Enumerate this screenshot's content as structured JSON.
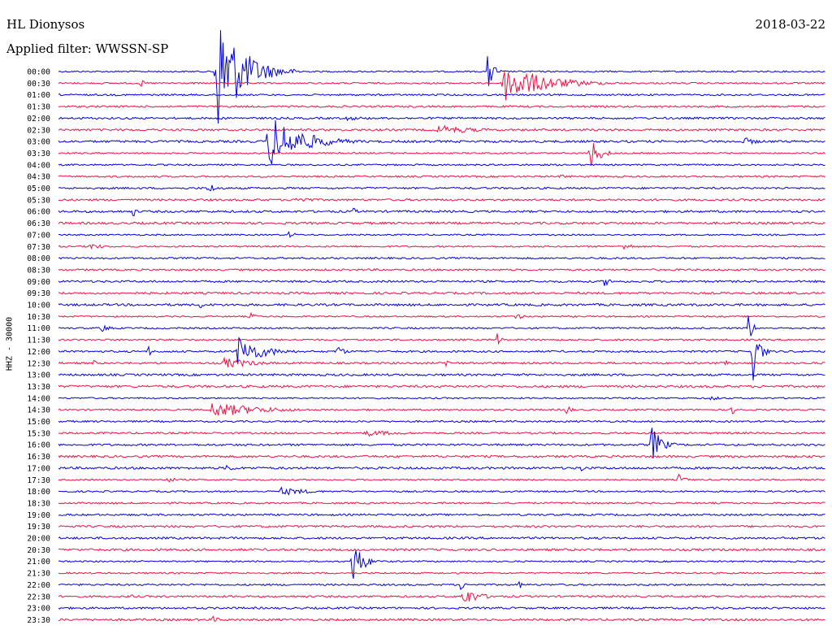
{
  "header": {
    "station": "HL Dionysos",
    "date": "2018-03-22",
    "filter": "Applied filter: WWSSN-SP",
    "channel": "HHZ - 30000"
  },
  "chart_data": {
    "type": "line",
    "colors": [
      "#0000dd",
      "#ee1144"
    ],
    "y_tick_labels": [
      "00:00",
      "00:30",
      "01:00",
      "01:30",
      "02:00",
      "02:30",
      "03:00",
      "03:30",
      "04:00",
      "04:30",
      "05:00",
      "05:30",
      "06:00",
      "06:30",
      "07:00",
      "07:30",
      "08:00",
      "08:30",
      "09:00",
      "09:30",
      "10:00",
      "10:30",
      "11:00",
      "11:30",
      "12:00",
      "12:30",
      "13:00",
      "13:30",
      "14:00",
      "14:30",
      "15:00",
      "15:30",
      "16:00",
      "16:30",
      "17:00",
      "17:30",
      "18:00",
      "18:30",
      "19:00",
      "19:30",
      "20:00",
      "20:30",
      "21:00",
      "21:30",
      "22:00",
      "22:30",
      "23:00",
      "23:30"
    ],
    "events": [
      {
        "row": 0,
        "x": 0.205,
        "amp": 85,
        "dur": 0.03
      },
      {
        "row": 0,
        "x": 0.56,
        "amp": 30,
        "dur": 0.006
      },
      {
        "row": 1,
        "x": 0.58,
        "amp": 25,
        "dur": 0.05
      },
      {
        "row": 1,
        "x": 0.107,
        "amp": 6,
        "dur": 0.004
      },
      {
        "row": 4,
        "x": 0.375,
        "amp": 3,
        "dur": 0.035
      },
      {
        "row": 5,
        "x": 0.495,
        "amp": 6,
        "dur": 0.05
      },
      {
        "row": 6,
        "x": 0.273,
        "amp": 35,
        "dur": 0.04
      },
      {
        "row": 6,
        "x": 0.894,
        "amp": 5,
        "dur": 0.02
      },
      {
        "row": 7,
        "x": 0.692,
        "amp": 22,
        "dur": 0.012
      },
      {
        "row": 9,
        "x": 0.655,
        "amp": 4,
        "dur": 0.01
      },
      {
        "row": 10,
        "x": 0.195,
        "amp": 7,
        "dur": 0.012
      },
      {
        "row": 11,
        "x": 0.31,
        "amp": 5,
        "dur": 0.02
      },
      {
        "row": 12,
        "x": 0.097,
        "amp": 8,
        "dur": 0.004
      },
      {
        "row": 12,
        "x": 0.385,
        "amp": 6,
        "dur": 0.004
      },
      {
        "row": 14,
        "x": 0.3,
        "amp": 4,
        "dur": 0.01
      },
      {
        "row": 15,
        "x": 0.04,
        "amp": 5,
        "dur": 0.015
      },
      {
        "row": 15,
        "x": 0.735,
        "amp": 5,
        "dur": 0.015
      },
      {
        "row": 18,
        "x": 0.712,
        "amp": 6,
        "dur": 0.01
      },
      {
        "row": 20,
        "x": 0.185,
        "amp": 5,
        "dur": 0.006
      },
      {
        "row": 21,
        "x": 0.25,
        "amp": 5,
        "dur": 0.008
      },
      {
        "row": 21,
        "x": 0.595,
        "amp": 5,
        "dur": 0.01
      },
      {
        "row": 22,
        "x": 0.056,
        "amp": 7,
        "dur": 0.008
      },
      {
        "row": 22,
        "x": 0.9,
        "amp": 25,
        "dur": 0.004
      },
      {
        "row": 23,
        "x": 0.572,
        "amp": 10,
        "dur": 0.004
      },
      {
        "row": 24,
        "x": 0.117,
        "amp": 8,
        "dur": 0.004
      },
      {
        "row": 24,
        "x": 0.233,
        "amp": 20,
        "dur": 0.03
      },
      {
        "row": 24,
        "x": 0.363,
        "amp": 10,
        "dur": 0.008
      },
      {
        "row": 24,
        "x": 0.905,
        "amp": 40,
        "dur": 0.008
      },
      {
        "row": 25,
        "x": 0.215,
        "amp": 7,
        "dur": 0.04
      },
      {
        "row": 25,
        "x": 0.045,
        "amp": 5,
        "dur": 0.004
      },
      {
        "row": 25,
        "x": 0.505,
        "amp": 6,
        "dur": 0.006
      },
      {
        "row": 25,
        "x": 0.87,
        "amp": 7,
        "dur": 0.004
      },
      {
        "row": 28,
        "x": 0.85,
        "amp": 4,
        "dur": 0.01
      },
      {
        "row": 29,
        "x": 0.2,
        "amp": 10,
        "dur": 0.06
      },
      {
        "row": 29,
        "x": 0.662,
        "amp": 8,
        "dur": 0.006
      },
      {
        "row": 29,
        "x": 0.878,
        "amp": 6,
        "dur": 0.01
      },
      {
        "row": 31,
        "x": 0.4,
        "amp": 4,
        "dur": 0.05
      },
      {
        "row": 32,
        "x": 0.773,
        "amp": 25,
        "dur": 0.012
      },
      {
        "row": 34,
        "x": 0.218,
        "amp": 6,
        "dur": 0.01
      },
      {
        "row": 34,
        "x": 0.68,
        "amp": 5,
        "dur": 0.01
      },
      {
        "row": 35,
        "x": 0.143,
        "amp": 7,
        "dur": 0.006
      },
      {
        "row": 35,
        "x": 0.808,
        "amp": 8,
        "dur": 0.008
      },
      {
        "row": 36,
        "x": 0.29,
        "amp": 5,
        "dur": 0.04
      },
      {
        "row": 37,
        "x": 0.668,
        "amp": 5,
        "dur": 0.004
      },
      {
        "row": 42,
        "x": 0.383,
        "amp": 30,
        "dur": 0.012
      },
      {
        "row": 44,
        "x": 0.523,
        "amp": 12,
        "dur": 0.004
      },
      {
        "row": 44,
        "x": 0.6,
        "amp": 7,
        "dur": 0.004
      },
      {
        "row": 45,
        "x": 0.527,
        "amp": 12,
        "dur": 0.02
      },
      {
        "row": 45,
        "x": 0.093,
        "amp": 6,
        "dur": 0.004
      },
      {
        "row": 47,
        "x": 0.2,
        "amp": 5,
        "dur": 0.01
      }
    ]
  }
}
